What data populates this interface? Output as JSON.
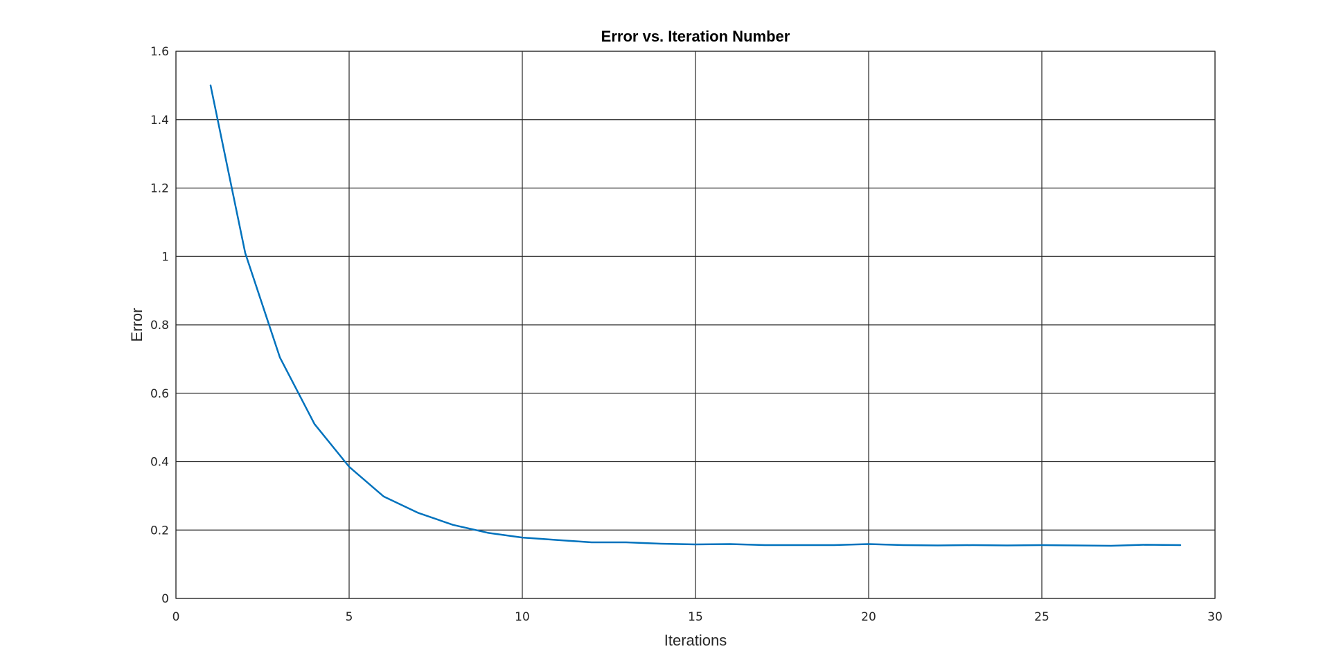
{
  "chart_data": {
    "type": "line",
    "title": "Error vs. Iteration Number",
    "xlabel": "Iterations",
    "ylabel": "Error",
    "xlim": [
      0,
      30
    ],
    "ylim": [
      0,
      1.6
    ],
    "grid": true,
    "x_ticks": [
      "0",
      "5",
      "10",
      "15",
      "20",
      "25",
      "30"
    ],
    "y_ticks": [
      "0",
      "0.2",
      "0.4",
      "0.6",
      "0.8",
      "1",
      "1.2",
      "1.4",
      "1.6"
    ],
    "x_tick_values": [
      0,
      5,
      10,
      15,
      20,
      25,
      30
    ],
    "y_tick_values": [
      0,
      0.2,
      0.4,
      0.6,
      0.8,
      1,
      1.2,
      1.4,
      1.6
    ],
    "series": [
      {
        "color": "#0072BD",
        "x": [
          1,
          2,
          3,
          4,
          5,
          6,
          7,
          8,
          9,
          10,
          11,
          12,
          13,
          14,
          15,
          16,
          17,
          18,
          19,
          20,
          21,
          22,
          23,
          24,
          25,
          26,
          27,
          28,
          29
        ],
        "y": [
          1.5,
          1.01,
          0.705,
          0.51,
          0.385,
          0.298,
          0.25,
          0.215,
          0.192,
          0.178,
          0.171,
          0.164,
          0.164,
          0.16,
          0.158,
          0.159,
          0.156,
          0.156,
          0.156,
          0.159,
          0.156,
          0.155,
          0.156,
          0.155,
          0.156,
          0.155,
          0.154,
          0.157,
          0.156
        ]
      }
    ]
  }
}
